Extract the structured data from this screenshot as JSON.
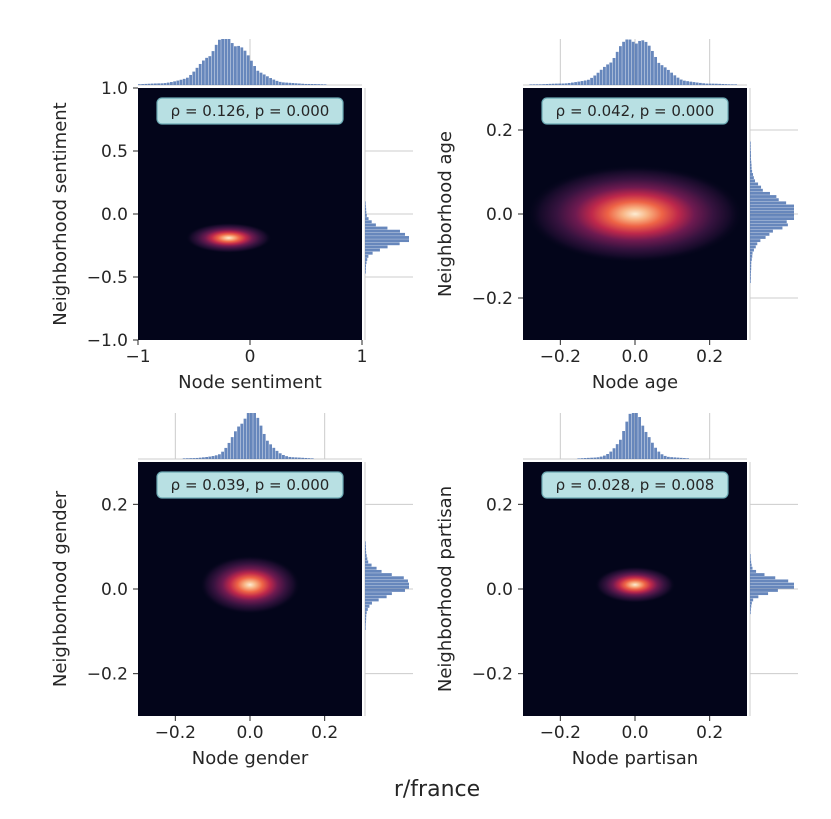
{
  "figure_title": "r/france",
  "chart_data": [
    {
      "type": "heatmap",
      "xlabel": "Node sentiment",
      "ylabel": "Neighborhood sentiment",
      "annotation": "ρ = 0.126, p = 0.000",
      "xlim": [
        -1,
        1
      ],
      "ylim": [
        -1,
        1
      ],
      "xticks": [
        -1,
        0,
        1
      ],
      "xtick_labels": [
        "−1",
        "0",
        "1"
      ],
      "yticks": [
        -1.0,
        -0.5,
        0.0,
        0.5,
        1.0
      ],
      "ytick_labels": [
        "−1.0",
        "−0.5",
        "0.0",
        "0.5",
        "1.0"
      ],
      "density_peak": {
        "x": -0.19,
        "y": -0.19,
        "sx": 0.16,
        "sy": 0.05,
        "halo": 1.0
      },
      "marginal_x_peak": -0.2,
      "marginal_y_peak": -0.19,
      "marginal_x_grid": [
        0.0
      ],
      "marginal_y_grid": [
        -0.5,
        0.0,
        0.5
      ]
    },
    {
      "type": "heatmap",
      "xlabel": "Node age",
      "ylabel": "Neighborhood age",
      "annotation": "ρ = 0.042, p = 0.000",
      "xlim": [
        -0.3,
        0.3
      ],
      "ylim": [
        -0.3,
        0.3
      ],
      "xticks": [
        -0.2,
        0.0,
        0.2
      ],
      "xtick_labels": [
        "−0.2",
        "0.0",
        "0.2"
      ],
      "yticks": [
        -0.2,
        0.0,
        0.2
      ],
      "ytick_labels": [
        "−0.2",
        "0.0",
        "0.2"
      ],
      "density_peak": {
        "x": 0.0,
        "y": 0.0,
        "sx": 0.055,
        "sy": 0.022,
        "halo": 2.2
      },
      "marginal_x_peak": 0.0,
      "marginal_y_peak": 0.0,
      "marginal_x_grid": [
        -0.2,
        0.0,
        0.2
      ],
      "marginal_y_grid": [
        -0.2,
        0.0,
        0.2
      ]
    },
    {
      "type": "heatmap",
      "xlabel": "Node gender",
      "ylabel": "Neighborhood gender",
      "annotation": "ρ = 0.039, p = 0.000",
      "xlim": [
        -0.3,
        0.3
      ],
      "ylim": [
        -0.3,
        0.3
      ],
      "xticks": [
        -0.2,
        0.0,
        0.2
      ],
      "xtick_labels": [
        "−0.2",
        "0.0",
        "0.2"
      ],
      "yticks": [
        -0.2,
        0.0,
        0.2
      ],
      "ytick_labels": [
        "−0.2",
        "0.0",
        "0.2"
      ],
      "density_peak": {
        "x": 0.0,
        "y": 0.01,
        "sx": 0.035,
        "sy": 0.018,
        "halo": 1.6
      },
      "marginal_x_peak": 0.0,
      "marginal_y_peak": 0.01,
      "marginal_x_grid": [
        -0.2,
        0.0,
        0.2
      ],
      "marginal_y_grid": [
        -0.2,
        0.0,
        0.2
      ]
    },
    {
      "type": "heatmap",
      "xlabel": "Node partisan",
      "ylabel": "Neighborhood partisan",
      "annotation": "ρ = 0.028, p = 0.008",
      "xlim": [
        -0.3,
        0.3
      ],
      "ylim": [
        -0.3,
        0.3
      ],
      "xticks": [
        -0.2,
        0.0,
        0.2
      ],
      "xtick_labels": [
        "−0.2",
        "0.0",
        "0.2"
      ],
      "yticks": [
        -0.2,
        0.0,
        0.2
      ],
      "ytick_labels": [
        "−0.2",
        "0.0",
        "0.2"
      ],
      "density_peak": {
        "x": 0.0,
        "y": 0.01,
        "sx": 0.03,
        "sy": 0.012,
        "halo": 1.5
      },
      "marginal_x_peak": 0.0,
      "marginal_y_peak": 0.01,
      "marginal_x_grid": [
        -0.2,
        0.0,
        0.2
      ],
      "marginal_y_grid": [
        -0.2,
        0.0,
        0.2
      ]
    }
  ],
  "colors": {
    "background": "#03051a",
    "marginal_bar": "#4c72b0",
    "annotation_fill": "#b8e0e3",
    "annotation_stroke": "#6ba9b3",
    "text": "#262626",
    "grid": "#cccccc"
  }
}
